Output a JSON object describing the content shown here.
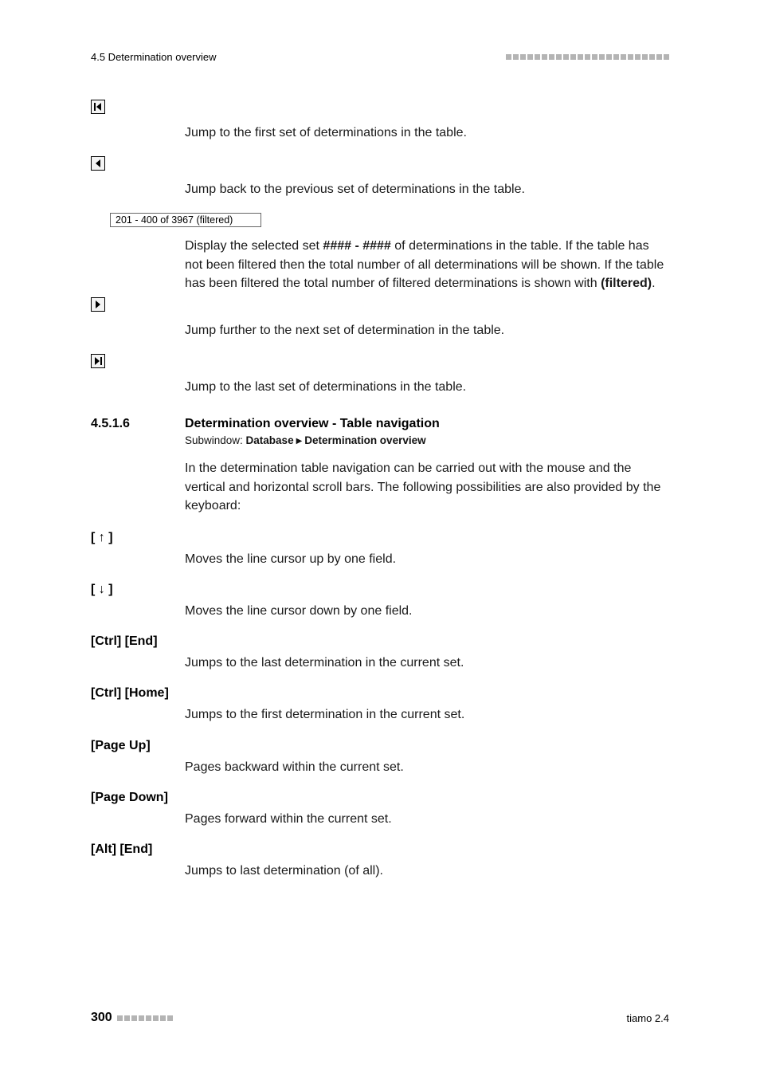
{
  "header": {
    "breadcrumb": "4.5 Determination overview",
    "square_count": 23
  },
  "nav_icons": {
    "first": {
      "desc": "Jump to the first set of determinations in the table."
    },
    "prev": {
      "desc": "Jump back to the previous set of determinations in the table."
    },
    "range_display": "201 - 400 of 3967  (filtered)",
    "range_desc_pre": "Display the selected set ",
    "range_desc_bold1": "#### - ####",
    "range_desc_mid": " of determinations in the table. If the table has not been filtered then the total number of all determinations will be shown. If the table has been filtered the total number of filtered determinations is shown with ",
    "range_desc_bold2": "(filtered)",
    "range_desc_post": ".",
    "next": {
      "desc": "Jump further to the next set of determination in the table."
    },
    "last": {
      "desc": "Jump to the last set of determinations in the table."
    }
  },
  "section": {
    "number": "4.5.1.6",
    "title": "Determination overview - Table navigation",
    "subwindow_label": "Subwindow: ",
    "subwindow_db": "Database",
    "subwindow_ov": "Determination overview",
    "intro": "In the determination table navigation can be carried out with the mouse and the vertical and horizontal scroll bars. The following possibilities are also provided by the keyboard:"
  },
  "keys": [
    {
      "label": "[ ↑ ]",
      "desc": "Moves the line cursor up by one field."
    },
    {
      "label": "[ ↓ ]",
      "desc": "Moves the line cursor down by one field."
    },
    {
      "label": "[Ctrl] [End]",
      "desc": "Jumps to the last determination in the current set."
    },
    {
      "label": "[Ctrl] [Home]",
      "desc": "Jumps to the first determination in the current set."
    },
    {
      "label": "[Page Up]",
      "desc": "Pages backward within the current set."
    },
    {
      "label": "[Page Down]",
      "desc": "Pages forward within the current set."
    },
    {
      "label": "[Alt] [End]",
      "desc": "Jumps to last determination (of all)."
    }
  ],
  "footer": {
    "page_number": "300",
    "square_count": 8,
    "product": "tiamo 2.4"
  },
  "style": {
    "body_font_size": 16,
    "small_font_size": 13,
    "icon_border_color": "#000000",
    "square_color": "#b4b4b4",
    "text_color": "#1a1a1a",
    "background_color": "#ffffff"
  }
}
